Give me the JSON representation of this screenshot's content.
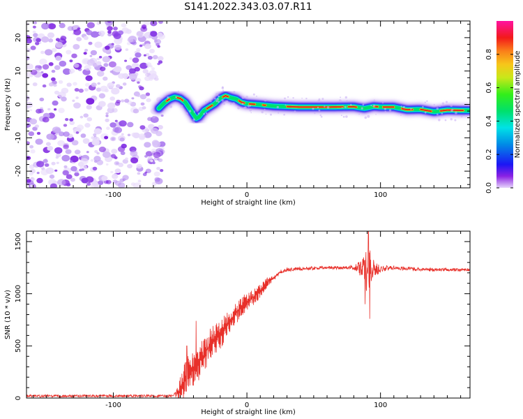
{
  "title": "S141.2022.343.03.07.R11",
  "colors": {
    "snr_line": "#e8302a",
    "trace_center": "#d81e1e",
    "noise": "#7b1fe0"
  },
  "chart_data": [
    {
      "type": "heatmap",
      "name": "spectrogram",
      "xlabel": "Height of straight line (km)",
      "ylabel": "Frequency (Hz)",
      "xlim": [
        -165,
        167
      ],
      "ylim": [
        -25,
        25
      ],
      "xticks": [
        -100,
        0,
        100
      ],
      "xtick_labels": [
        "-100",
        "0",
        "100"
      ],
      "yticks": [
        -20,
        -10,
        0,
        10,
        20
      ],
      "ytick_labels": [
        "-20",
        "-10",
        "0",
        "10",
        "20"
      ],
      "noise_region_x": [
        -165,
        -65
      ],
      "ridge": {
        "x": [
          -66,
          -62,
          -58,
          -54,
          -50,
          -46,
          -42,
          -38,
          -36,
          -32,
          -28,
          -24,
          -20,
          -16,
          -12,
          -8,
          -4,
          0,
          10,
          20,
          40,
          60,
          80,
          88,
          95,
          100,
          110,
          120,
          130,
          140,
          150,
          160,
          167
        ],
        "freq": [
          -1.2,
          0.4,
          1.6,
          2.2,
          1.8,
          0.6,
          -1.8,
          -4.2,
          -3.8,
          -1.8,
          -0.8,
          0.2,
          1.8,
          2.6,
          2.0,
          1.6,
          0.6,
          0.2,
          -0.1,
          -0.5,
          -0.8,
          -0.8,
          -0.7,
          -1.2,
          -0.6,
          -0.8,
          -0.8,
          -1.6,
          -1.5,
          -2.2,
          -1.7,
          -1.8,
          -1.8
        ]
      },
      "colorbar": {
        "label": "Normalized spectral amplitude",
        "range": [
          0,
          1
        ],
        "ticks": [
          0.0,
          0.2,
          0.4,
          0.6,
          0.8
        ],
        "tick_labels": [
          "0.0",
          "0.2",
          "0.4",
          "0.6",
          "0.8"
        ]
      }
    },
    {
      "type": "line",
      "name": "snr",
      "xlabel": "Height of straight line (km)",
      "ylabel": "SNR (10 * v/v)",
      "xlim": [
        -165,
        167
      ],
      "ylim": [
        0,
        1600
      ],
      "xticks": [
        -100,
        0,
        100
      ],
      "xtick_labels": [
        "-100",
        "0",
        "100"
      ],
      "yticks": [
        0,
        500,
        1000,
        1500
      ],
      "ytick_labels": [
        "0",
        "500",
        "1000",
        "1500"
      ],
      "envelope": {
        "x": [
          -165,
          -55,
          -52,
          -48,
          -44,
          -40,
          -36,
          -32,
          -28,
          -24,
          -20,
          -16,
          -12,
          -8,
          -4,
          0,
          4,
          8,
          12,
          16,
          20,
          25,
          30,
          40,
          60,
          80,
          88,
          90,
          92,
          95,
          100,
          110,
          120,
          140,
          167
        ],
        "snr": [
          20,
          20,
          40,
          120,
          250,
          300,
          350,
          420,
          500,
          560,
          600,
          680,
          760,
          820,
          880,
          920,
          960,
          1000,
          1060,
          1120,
          1150,
          1210,
          1230,
          1240,
          1250,
          1250,
          1240,
          1230,
          1280,
          1230,
          1240,
          1250,
          1240,
          1230,
          1230
        ],
        "noise": [
          12,
          12,
          60,
          180,
          200,
          190,
          180,
          170,
          160,
          150,
          140,
          130,
          120,
          110,
          100,
          90,
          80,
          70,
          60,
          45,
          30,
          20,
          18,
          16,
          16,
          18,
          120,
          240,
          200,
          90,
          30,
          20,
          18,
          16,
          16
        ]
      },
      "spikes": [
        {
          "x": 91.0,
          "snr": 1610
        },
        {
          "x": 92.0,
          "snr": 760
        },
        {
          "x": 88.5,
          "snr": 900
        },
        {
          "x": -38.0,
          "snr": 740
        },
        {
          "x": -45.0,
          "snr": 500
        }
      ]
    }
  ]
}
